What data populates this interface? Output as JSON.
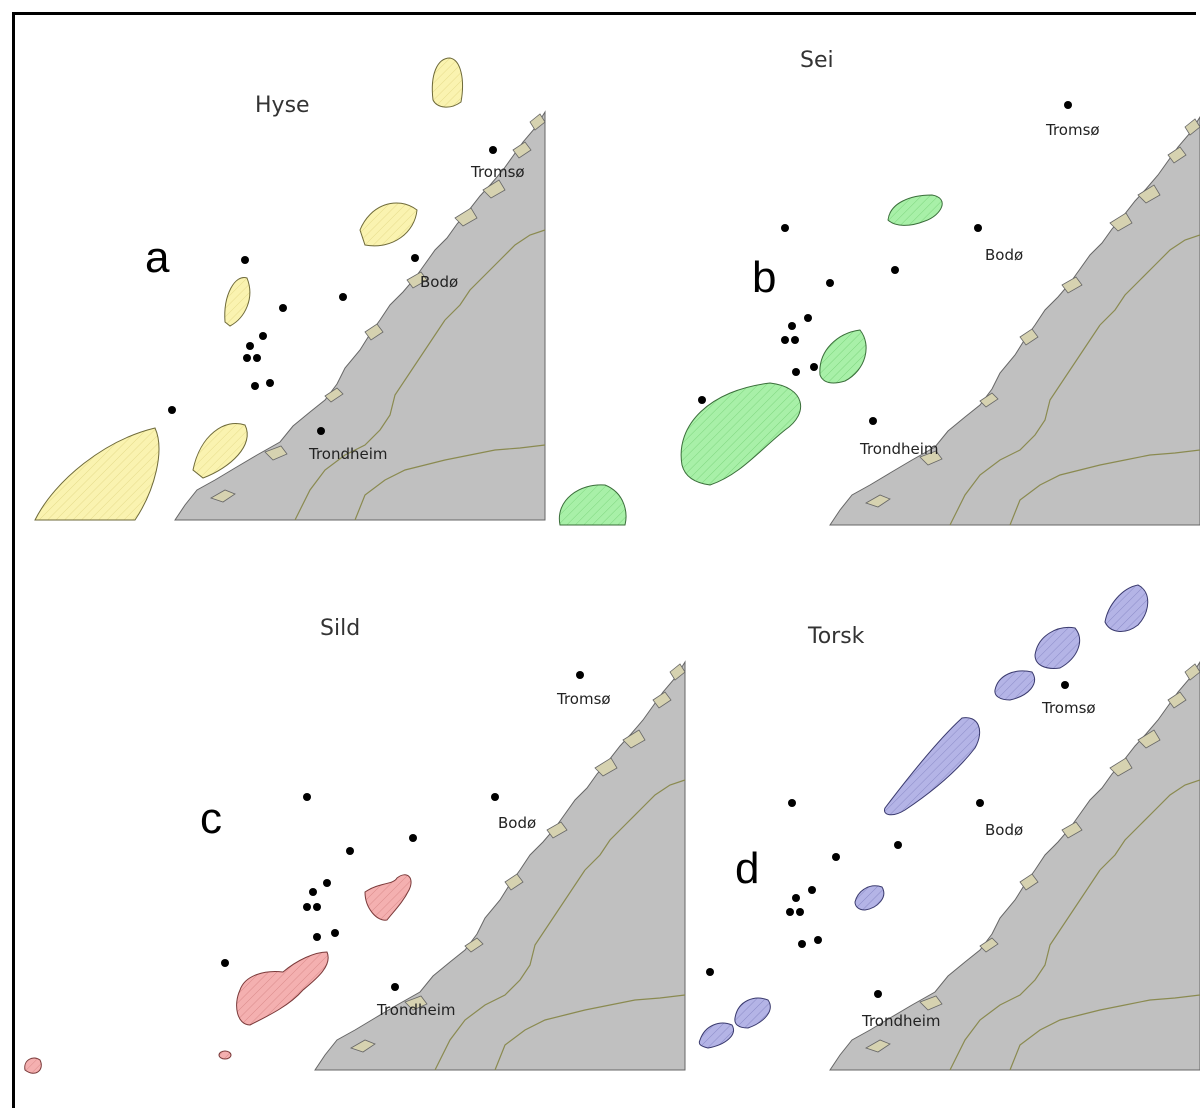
{
  "panels": [
    {
      "id": "a",
      "title": "Hyse",
      "letter": "a",
      "fill": "#faf3b0",
      "stroke": "#6e6a3a"
    },
    {
      "id": "b",
      "title": "Sei",
      "letter": "b",
      "fill": "#a8f0a8",
      "stroke": "#3a6e3a"
    },
    {
      "id": "c",
      "title": "Sild",
      "letter": "c",
      "fill": "#f4b0b0",
      "stroke": "#7a3a3a"
    },
    {
      "id": "d",
      "title": "Torsk",
      "letter": "d",
      "fill": "#b4b4e6",
      "stroke": "#3a3a6e"
    }
  ],
  "cities": {
    "tromso": "Tromsø",
    "bodo": "Bodø",
    "trondheim": "Trondheim"
  }
}
